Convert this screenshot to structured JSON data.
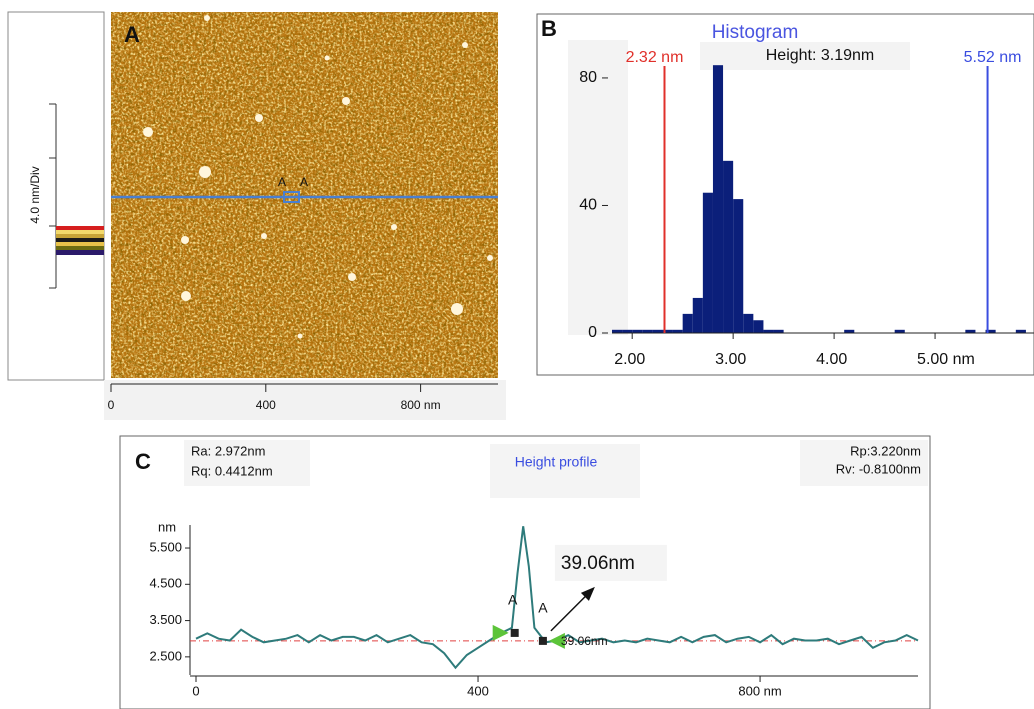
{
  "panel_a": {
    "label": "A",
    "scale_label": "4.0 nm/Div",
    "cursor_labels": [
      "A",
      "A"
    ],
    "xlim": [
      0,
      1000
    ],
    "xticks": [
      0,
      400,
      {
        "value": 800,
        "label": "800 nm"
      }
    ]
  },
  "chart_data": [
    {
      "type": "histogram",
      "panel_label": "B",
      "title": "Histogram",
      "annotation": "Height: 3.19nm",
      "color": "#0b1f7a",
      "bins": [
        1.8,
        1.9,
        2.0,
        2.1,
        2.2,
        2.3,
        2.4,
        2.5,
        2.6,
        2.7,
        2.8,
        2.9,
        3.0,
        3.1,
        3.2,
        3.3,
        3.4,
        3.5,
        3.6,
        3.7,
        3.8,
        3.9,
        4.0,
        4.1,
        4.2,
        4.3,
        4.4,
        4.5,
        4.6,
        4.7,
        4.8,
        4.9,
        5.0,
        5.1,
        5.2,
        5.3,
        5.4,
        5.5,
        5.6,
        5.7,
        5.8,
        5.9,
        6.0
      ],
      "counts": [
        1,
        1,
        1,
        1,
        1,
        1,
        1,
        6,
        11,
        44,
        84,
        54,
        42,
        6,
        4,
        1,
        1,
        0,
        0,
        0,
        0,
        0,
        0,
        1,
        0,
        0,
        0,
        0,
        1,
        0,
        0,
        0,
        0,
        0,
        0,
        1,
        0,
        1,
        0,
        0,
        1,
        0
      ],
      "xlim": [
        1.8,
        5.98
      ],
      "ylim": [
        0,
        85
      ],
      "xticks": [
        {
          "value": 2,
          "label": "2.00"
        },
        {
          "value": 3,
          "label": "3.00"
        },
        {
          "value": 4,
          "label": "4.00"
        },
        {
          "value": 5,
          "label": "5.00 nm"
        }
      ],
      "yticks": [
        0,
        40,
        80
      ],
      "markers": [
        {
          "value": 2.32,
          "label": "2.32 nm",
          "color": "#e0302a"
        },
        {
          "value": 5.52,
          "label": "5.52 nm",
          "color": "#3a4de0"
        }
      ]
    },
    {
      "type": "line",
      "panel_label": "C",
      "title": "Height profile",
      "y_label": "nm",
      "stats": [
        "Ra: 2.972nm",
        "Rq: 0.4412nm",
        "Rp:3.220nm",
        "Rv: -0.8100nm"
      ],
      "annotation": "39.06nm",
      "cursor_note": "39.06nm",
      "x": [
        0,
        16,
        32,
        48,
        64,
        80,
        96,
        112,
        128,
        144,
        160,
        176,
        192,
        208,
        224,
        240,
        256,
        272,
        288,
        304,
        320,
        336,
        352,
        368,
        384,
        400,
        416,
        432,
        448,
        456,
        464,
        472,
        480,
        496,
        512,
        528,
        544,
        560,
        576,
        592,
        608,
        624,
        640,
        656,
        672,
        688,
        704,
        720,
        736,
        752,
        768,
        784,
        800,
        816,
        832,
        848,
        864,
        880,
        896,
        912,
        928,
        944,
        960,
        976,
        992,
        1008,
        1024
      ],
      "series": [
        {
          "name": "Height",
          "color": "#2e7b7b",
          "values": [
            3.0,
            3.15,
            3.0,
            2.95,
            3.25,
            3.05,
            2.9,
            2.95,
            3.0,
            3.1,
            2.9,
            3.1,
            2.95,
            3.05,
            3.05,
            2.95,
            3.1,
            2.9,
            3.0,
            3.1,
            2.9,
            2.85,
            2.6,
            2.2,
            2.55,
            2.75,
            2.95,
            3.15,
            3.3,
            4.8,
            6.1,
            5.0,
            3.3,
            2.9,
            2.95,
            3.1,
            2.9,
            2.95,
            3.0,
            2.9,
            2.95,
            2.9,
            3.0,
            2.95,
            2.9,
            3.05,
            2.9,
            3.05,
            3.1,
            2.9,
            3.0,
            3.05,
            2.9,
            3.1,
            2.85,
            3.0,
            2.95,
            2.95,
            3.0,
            2.85,
            2.95,
            3.05,
            2.75,
            2.9,
            2.95,
            3.1,
            2.95
          ]
        }
      ],
      "reference_line": 2.94,
      "cursors": [
        {
          "x": 452,
          "y": 3.16,
          "label": "A"
        },
        {
          "x": 492,
          "y": 2.94,
          "label": "A"
        }
      ],
      "xlim": [
        0,
        1024
      ],
      "ylim": [
        2.0,
        6.3
      ],
      "xticks": [
        0,
        400,
        {
          "value": 800,
          "label": "800 nm"
        }
      ],
      "yticks": [
        {
          "value": 2.5,
          "label": "2.500"
        },
        {
          "value": 3.5,
          "label": "3.500"
        },
        {
          "value": 4.5,
          "label": "4.500"
        },
        {
          "value": 5.5,
          "label": "5.500"
        }
      ]
    }
  ]
}
